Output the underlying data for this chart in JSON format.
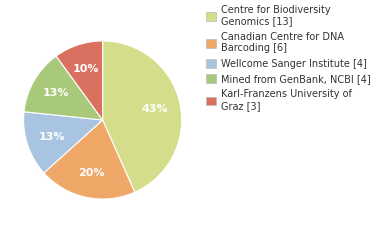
{
  "labels": [
    "Centre for Biodiversity\nGenomics [13]",
    "Canadian Centre for DNA\nBarcoding [6]",
    "Wellcome Sanger Institute [4]",
    "Mined from GenBank, NCBI [4]",
    "Karl-Franzens University of\nGraz [3]"
  ],
  "values": [
    13,
    6,
    4,
    4,
    3
  ],
  "colors": [
    "#d4de8a",
    "#f0a868",
    "#a8c4e0",
    "#a8c87a",
    "#d97060"
  ],
  "startangle": 90,
  "background_color": "#ffffff",
  "text_color": "#333333",
  "fontsize": 7,
  "pct_fontsize": 8
}
